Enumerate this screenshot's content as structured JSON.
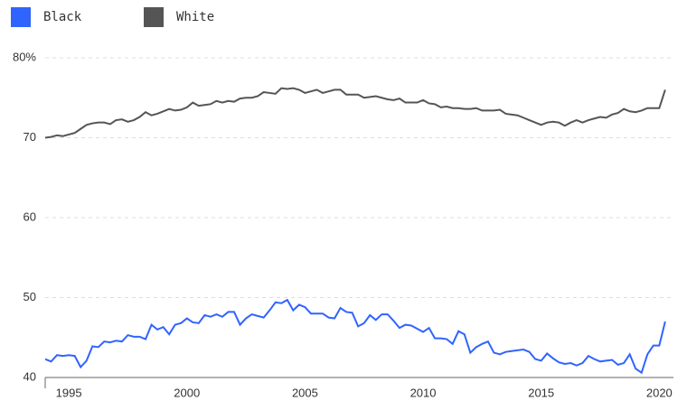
{
  "chart_data": {
    "type": "line",
    "x": [
      1994,
      1994.25,
      1994.5,
      1994.75,
      1995,
      1995.25,
      1995.5,
      1995.75,
      1996,
      1996.25,
      1996.5,
      1996.75,
      1997,
      1997.25,
      1997.5,
      1997.75,
      1998,
      1998.25,
      1998.5,
      1998.75,
      1999,
      1999.25,
      1999.5,
      1999.75,
      2000,
      2000.25,
      2000.5,
      2000.75,
      2001,
      2001.25,
      2001.5,
      2001.75,
      2002,
      2002.25,
      2002.5,
      2002.75,
      2003,
      2003.25,
      2003.5,
      2003.75,
      2004,
      2004.25,
      2004.5,
      2004.75,
      2005,
      2005.25,
      2005.5,
      2005.75,
      2006,
      2006.25,
      2006.5,
      2006.75,
      2007,
      2007.25,
      2007.5,
      2007.75,
      2008,
      2008.25,
      2008.5,
      2008.75,
      2009,
      2009.25,
      2009.5,
      2009.75,
      2010,
      2010.25,
      2010.5,
      2010.75,
      2011,
      2011.25,
      2011.5,
      2011.75,
      2012,
      2012.25,
      2012.5,
      2012.75,
      2013,
      2013.25,
      2013.5,
      2013.75,
      2014,
      2014.25,
      2014.5,
      2014.75,
      2015,
      2015.25,
      2015.5,
      2015.75,
      2016,
      2016.25,
      2016.5,
      2016.75,
      2017,
      2017.25,
      2017.5,
      2017.75,
      2018,
      2018.25,
      2018.5,
      2018.75,
      2019,
      2019.25,
      2019.5,
      2019.75,
      2020,
      2020.25
    ],
    "series": [
      {
        "name": "Black",
        "color": "#3064ff",
        "values": [
          42.3,
          42.0,
          42.8,
          42.7,
          42.8,
          42.7,
          41.3,
          42.1,
          43.9,
          43.8,
          44.5,
          44.4,
          44.6,
          44.5,
          45.3,
          45.1,
          45.1,
          44.8,
          46.6,
          46.0,
          46.3,
          45.4,
          46.6,
          46.8,
          47.4,
          46.9,
          46.8,
          47.8,
          47.6,
          47.9,
          47.6,
          48.2,
          48.2,
          46.6,
          47.4,
          47.9,
          47.7,
          47.5,
          48.4,
          49.4,
          49.3,
          49.7,
          48.4,
          49.1,
          48.8,
          48.0,
          48.0,
          48.0,
          47.5,
          47.4,
          48.7,
          48.2,
          48.1,
          46.4,
          46.8,
          47.8,
          47.2,
          47.9,
          47.9,
          47.1,
          46.2,
          46.6,
          46.5,
          46.1,
          45.7,
          46.2,
          44.9,
          44.9,
          44.8,
          44.2,
          45.8,
          45.4,
          43.1,
          43.8,
          44.2,
          44.5,
          43.1,
          42.9,
          43.2,
          43.3,
          43.4,
          43.5,
          43.2,
          42.3,
          42.1,
          43.0,
          42.4,
          41.9,
          41.7,
          41.8,
          41.5,
          41.8,
          42.7,
          42.3,
          42.0,
          42.1,
          42.2,
          41.6,
          41.8,
          42.9,
          41.1,
          40.6,
          42.9,
          44.0,
          44.0,
          47.0
        ]
      },
      {
        "name": "White",
        "color": "#555555",
        "values": [
          70.0,
          70.1,
          70.3,
          70.2,
          70.4,
          70.6,
          71.1,
          71.6,
          71.8,
          71.9,
          71.9,
          71.7,
          72.2,
          72.3,
          72.0,
          72.2,
          72.6,
          73.2,
          72.8,
          73.0,
          73.3,
          73.6,
          73.4,
          73.5,
          73.8,
          74.4,
          74.0,
          74.1,
          74.2,
          74.6,
          74.4,
          74.6,
          74.5,
          74.9,
          75.0,
          75.0,
          75.2,
          75.7,
          75.6,
          75.5,
          76.2,
          76.1,
          76.2,
          76.0,
          75.6,
          75.8,
          76.0,
          75.6,
          75.8,
          76.0,
          76.0,
          75.4,
          75.4,
          75.4,
          75.0,
          75.1,
          75.2,
          75.0,
          74.8,
          74.7,
          74.9,
          74.4,
          74.4,
          74.4,
          74.7,
          74.3,
          74.2,
          73.8,
          73.9,
          73.7,
          73.7,
          73.6,
          73.6,
          73.7,
          73.4,
          73.4,
          73.4,
          73.5,
          73.0,
          72.9,
          72.8,
          72.5,
          72.2,
          71.9,
          71.6,
          71.9,
          72.0,
          71.9,
          71.5,
          71.9,
          72.2,
          71.9,
          72.2,
          72.4,
          72.6,
          72.5,
          72.9,
          73.1,
          73.6,
          73.3,
          73.2,
          73.4,
          73.7,
          73.7,
          73.7,
          76.0
        ]
      }
    ],
    "xlim": [
      1994,
      2020.6
    ],
    "xticks": [
      1995,
      2000,
      2005,
      2010,
      2015,
      2020
    ],
    "ylim": [
      40,
      80
    ],
    "yticks": [
      40,
      50,
      60,
      {
        "value": 70,
        "label": "70"
      },
      {
        "value": 80,
        "label": "80%"
      }
    ],
    "grid": true
  }
}
